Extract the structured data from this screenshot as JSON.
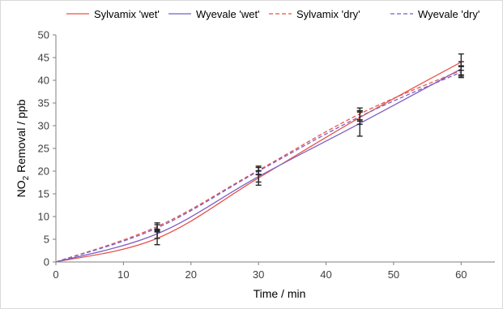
{
  "chart_data": {
    "type": "line",
    "title": "",
    "xlabel": "Time / min",
    "ylabel_main": "NO",
    "ylabel_sub": "2",
    "ylabel_rest": " Removal / ppb",
    "xlim": [
      0,
      65
    ],
    "ylim": [
      0,
      50
    ],
    "xticks": [
      0,
      10,
      20,
      30,
      40,
      50,
      60
    ],
    "yticks": [
      0,
      5,
      10,
      15,
      20,
      25,
      30,
      35,
      40,
      45,
      50
    ],
    "grid": false,
    "legend_position": "top",
    "series": [
      {
        "name": "Sylvamix 'wet'",
        "color": "#e8534a",
        "dash": "solid",
        "x": [
          0,
          15,
          30,
          45,
          60
        ],
        "y": [
          0,
          5.2,
          18.5,
          31.8,
          44.0
        ],
        "error": [
          0,
          1.4,
          1.6,
          1.5,
          1.8
        ]
      },
      {
        "name": "Wyevale 'wet'",
        "color": "#7b5fc4",
        "dash": "solid",
        "x": [
          0,
          15,
          30,
          45,
          60
        ],
        "y": [
          0,
          6.2,
          18.8,
          30.5,
          42.5
        ],
        "error": [
          0,
          1.0,
          1.2,
          2.8,
          1.6
        ]
      },
      {
        "name": "Sylvamix 'dry'",
        "color": "#e8534a",
        "dash": "dashed",
        "x": [
          0,
          15,
          30,
          45,
          60
        ],
        "y": [
          0,
          7.8,
          20.2,
          32.6,
          42.2
        ],
        "error": [
          0,
          0.8,
          0.9,
          1.3,
          1.0
        ]
      },
      {
        "name": "Wyevale 'dry'",
        "color": "#7b5fc4",
        "dash": "dashed",
        "x": [
          0,
          15,
          30,
          45,
          60
        ],
        "y": [
          0,
          7.5,
          20.0,
          32.0,
          41.8
        ],
        "error": [
          0,
          0.7,
          0.8,
          1.0,
          1.2
        ]
      }
    ]
  }
}
